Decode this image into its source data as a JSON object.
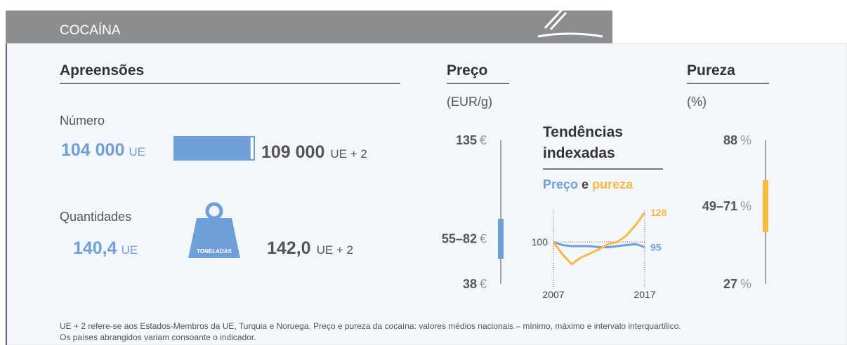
{
  "header": {
    "title": "COCAÍNA"
  },
  "seizures": {
    "title": "Apreensões",
    "number": {
      "label": "Número",
      "eu": {
        "value": 104000,
        "label": "104 000"
      },
      "eu_unit": "UE",
      "eu2": {
        "value": 109000,
        "label": "109 000"
      },
      "eu2_unit": "UE + 2"
    },
    "quantity": {
      "label": "Quantidades",
      "icon_label": "TONELADAS",
      "eu": {
        "value": 140.4,
        "label": "140,4"
      },
      "eu_unit": "UE",
      "eu2": {
        "value": 142.0,
        "label": "142,0"
      },
      "eu2_unit": "UE + 2"
    }
  },
  "price": {
    "title": "Preço",
    "unit_label": "(EUR/g)",
    "unit": "€",
    "max": 135,
    "min": 38,
    "iqr": [
      55,
      82
    ],
    "iqr_label": "55–82"
  },
  "purity": {
    "title": "Pureza",
    "unit_label": "(%)",
    "unit": "%",
    "max": 88,
    "min": 27,
    "iqr": [
      49,
      71
    ],
    "iqr_label": "49–71"
  },
  "trends": {
    "title": [
      "Tendências",
      "indexadas"
    ],
    "legend": [
      "Preço",
      "e",
      "pureza"
    ],
    "categories": [
      "2007",
      null,
      null,
      null,
      null,
      null,
      null,
      null,
      null,
      null,
      "2017"
    ],
    "baseline": 100,
    "series": [
      {
        "name": "Preço",
        "color": "#6f9fd8",
        "values": [
          100,
          97,
          96,
          96,
          96,
          95,
          95,
          96,
          97,
          98,
          95
        ]
      },
      {
        "name": "pureza",
        "color": "#f7b941",
        "values": [
          100,
          88,
          79,
          85,
          89,
          93,
          98,
          100,
          106,
          116,
          128
        ]
      }
    ],
    "end_labels": [
      95,
      128
    ]
  },
  "footnote": [
    "UE + 2 refere-se aos Estados-Membros da UE, Turquia e Noruega. Preço e pureza da cocaína: valores médios nacionais – mínimo, máximo e intervalo interquartílico.",
    "Os países abrangidos variam consoante o indicador."
  ]
}
